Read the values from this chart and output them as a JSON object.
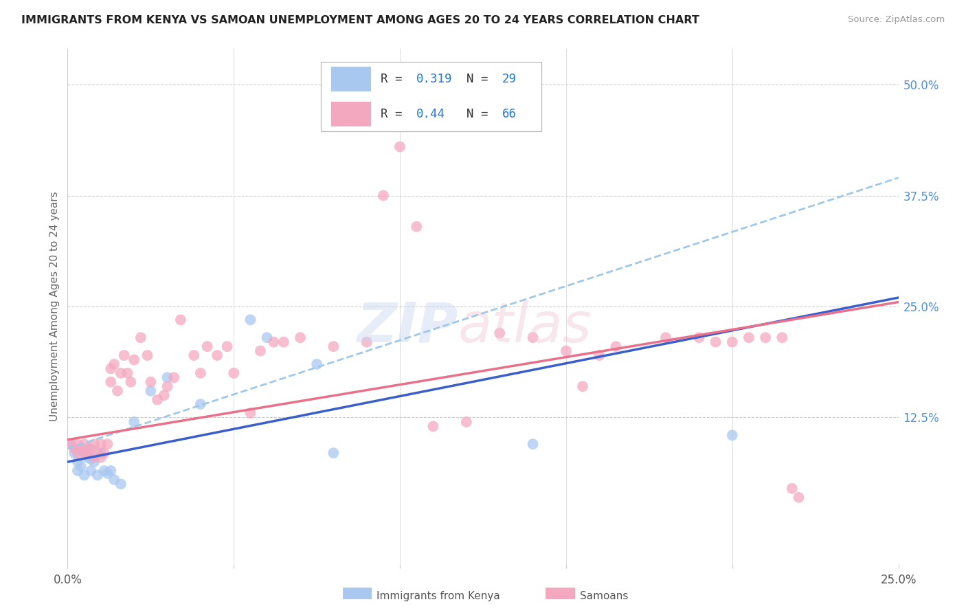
{
  "title": "IMMIGRANTS FROM KENYA VS SAMOAN UNEMPLOYMENT AMONG AGES 20 TO 24 YEARS CORRELATION CHART",
  "source": "Source: ZipAtlas.com",
  "ylabel": "Unemployment Among Ages 20 to 24 years",
  "xlim": [
    0.0,
    0.25
  ],
  "ylim": [
    -0.04,
    0.54
  ],
  "yticks_right": [
    0.125,
    0.25,
    0.375,
    0.5
  ],
  "yticklabels_right": [
    "12.5%",
    "25.0%",
    "37.5%",
    "50.0%"
  ],
  "kenya_R": 0.319,
  "kenya_N": 29,
  "samoan_R": 0.44,
  "samoan_N": 66,
  "kenya_color": "#a8c8f0",
  "samoan_color": "#f4a8c0",
  "kenya_line_color": "#3a5fcd",
  "samoan_line_color": "#e8708a",
  "dashed_color": "#a0c8e8",
  "kenya_x": [
    0.001,
    0.002,
    0.003,
    0.003,
    0.004,
    0.005,
    0.005,
    0.006,
    0.006,
    0.007,
    0.007,
    0.008,
    0.009,
    0.01,
    0.011,
    0.012,
    0.013,
    0.014,
    0.016,
    0.02,
    0.025,
    0.03,
    0.04,
    0.055,
    0.06,
    0.075,
    0.08,
    0.14,
    0.2
  ],
  "kenya_y": [
    0.095,
    0.085,
    0.075,
    0.065,
    0.07,
    0.085,
    0.06,
    0.09,
    0.08,
    0.078,
    0.065,
    0.075,
    0.06,
    0.085,
    0.065,
    0.062,
    0.065,
    0.055,
    0.05,
    0.12,
    0.155,
    0.17,
    0.14,
    0.235,
    0.215,
    0.185,
    0.085,
    0.095,
    0.105
  ],
  "samoan_x": [
    0.001,
    0.002,
    0.003,
    0.003,
    0.004,
    0.005,
    0.005,
    0.006,
    0.007,
    0.008,
    0.008,
    0.009,
    0.01,
    0.01,
    0.011,
    0.012,
    0.013,
    0.013,
    0.014,
    0.015,
    0.016,
    0.017,
    0.018,
    0.019,
    0.02,
    0.022,
    0.024,
    0.025,
    0.027,
    0.029,
    0.03,
    0.032,
    0.034,
    0.038,
    0.04,
    0.042,
    0.045,
    0.048,
    0.05,
    0.055,
    0.058,
    0.062,
    0.065,
    0.07,
    0.08,
    0.09,
    0.095,
    0.1,
    0.105,
    0.11,
    0.12,
    0.13,
    0.14,
    0.15,
    0.155,
    0.16,
    0.165,
    0.18,
    0.19,
    0.195,
    0.2,
    0.205,
    0.21,
    0.215,
    0.218,
    0.22
  ],
  "samoan_y": [
    0.095,
    0.09,
    0.085,
    0.095,
    0.09,
    0.085,
    0.095,
    0.085,
    0.09,
    0.08,
    0.095,
    0.085,
    0.08,
    0.095,
    0.085,
    0.095,
    0.165,
    0.18,
    0.185,
    0.155,
    0.175,
    0.195,
    0.175,
    0.165,
    0.19,
    0.215,
    0.195,
    0.165,
    0.145,
    0.15,
    0.16,
    0.17,
    0.235,
    0.195,
    0.175,
    0.205,
    0.195,
    0.205,
    0.175,
    0.13,
    0.2,
    0.21,
    0.21,
    0.215,
    0.205,
    0.21,
    0.375,
    0.43,
    0.34,
    0.115,
    0.12,
    0.22,
    0.215,
    0.2,
    0.16,
    0.195,
    0.205,
    0.215,
    0.215,
    0.21,
    0.21,
    0.215,
    0.215,
    0.215,
    0.045,
    0.035
  ],
  "kenya_line_x0": 0.0,
  "kenya_line_y0": 0.075,
  "kenya_line_x1": 0.25,
  "kenya_line_y1": 0.26,
  "samoan_line_x0": 0.0,
  "samoan_line_y0": 0.1,
  "samoan_line_x1": 0.25,
  "samoan_line_y1": 0.255,
  "dash_line_x0": 0.0,
  "dash_line_y0": 0.09,
  "dash_line_x1": 0.25,
  "dash_line_y1": 0.395
}
